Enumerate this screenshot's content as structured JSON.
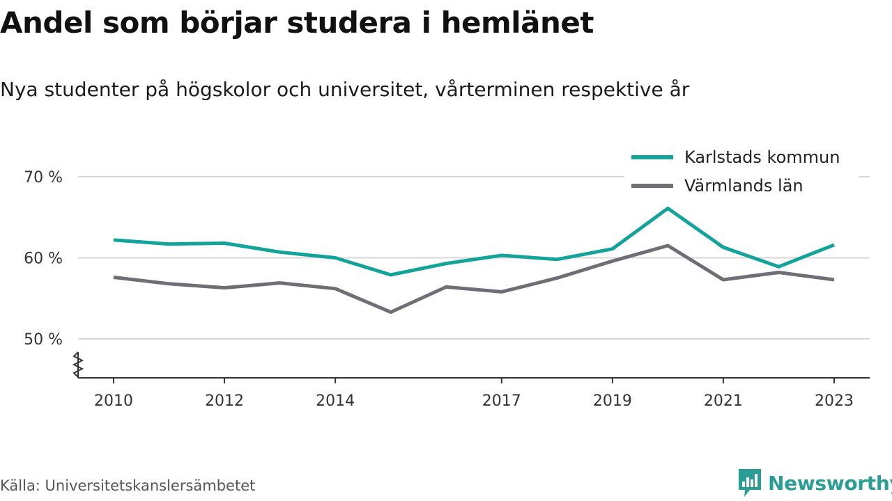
{
  "title": "Andel som börjar studera i hemlänet",
  "subtitle": "Nya studenter på högskolor och universitet, vårterminen respektive år",
  "source": "Källa: Universitetskanslersämbetet",
  "brand": {
    "name": "Newsworthy",
    "icon": "newsworthy-logo-icon",
    "color": "#2a9d94"
  },
  "chart_data": {
    "type": "line",
    "x": [
      2010,
      2011,
      2012,
      2013,
      2014,
      2015,
      2016,
      2017,
      2018,
      2019,
      2020,
      2021,
      2022,
      2023
    ],
    "x_tick_values": [
      2010,
      2012,
      2014,
      2017,
      2019,
      2021,
      2023
    ],
    "x_tick_labels": [
      "2010",
      "2012",
      "2014",
      "2017",
      "2019",
      "2021",
      "2023"
    ],
    "y_ticks": [
      50,
      60,
      70
    ],
    "y_tick_labels": [
      "50 %",
      "60 %",
      "70 %"
    ],
    "ylim": [
      45,
      73
    ],
    "axis_break": true,
    "grid": true,
    "legend_position": "top-right",
    "series": [
      {
        "name": "Karlstads kommun",
        "color": "#14a39a",
        "values": [
          62.2,
          61.7,
          61.8,
          60.7,
          60.0,
          57.9,
          59.3,
          60.3,
          59.8,
          61.1,
          66.1,
          61.3,
          58.9,
          61.6
        ]
      },
      {
        "name": "Värmlands län",
        "color": "#6e6e76",
        "values": [
          57.6,
          56.8,
          56.3,
          56.9,
          56.2,
          53.3,
          56.4,
          55.8,
          57.5,
          59.6,
          61.5,
          57.3,
          58.2,
          57.3
        ]
      }
    ]
  }
}
